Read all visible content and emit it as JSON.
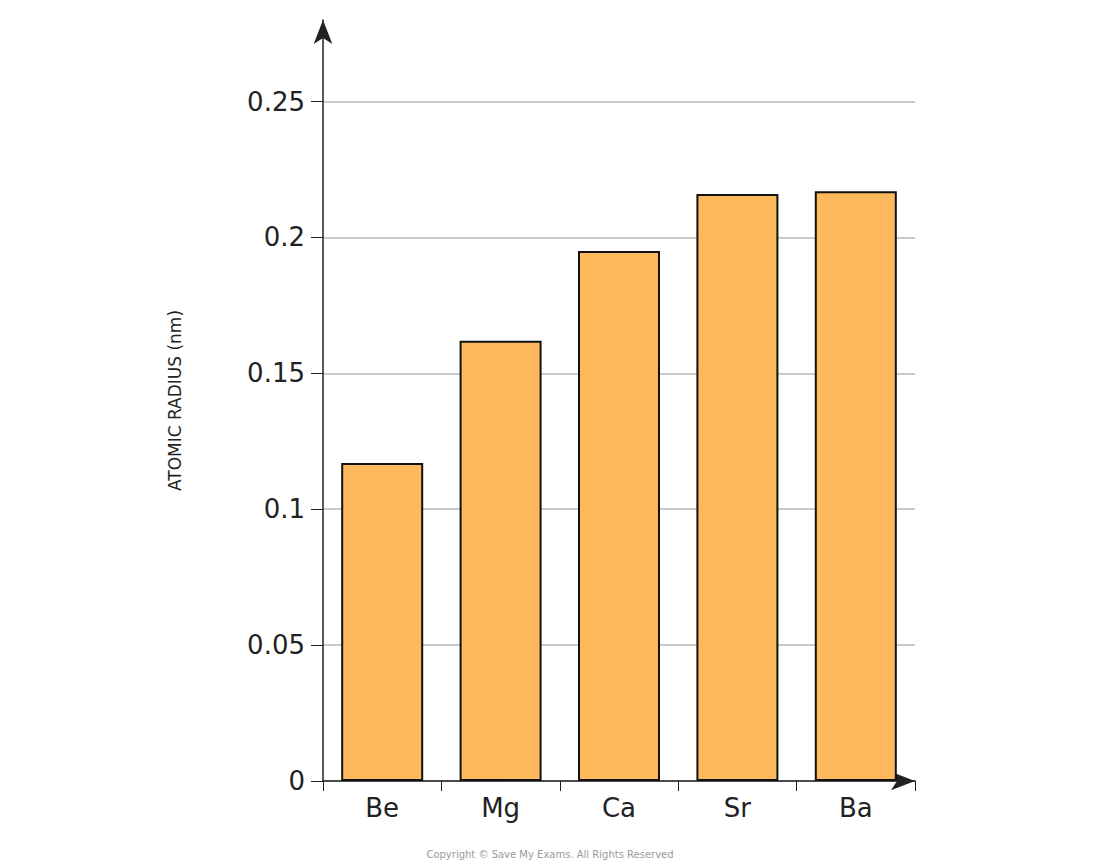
{
  "chart_data": {
    "type": "bar",
    "categories": [
      "Be",
      "Mg",
      "Ca",
      "Sr",
      "Ba"
    ],
    "values": [
      0.117,
      0.162,
      0.195,
      0.216,
      0.217
    ],
    "color": "#fdb95c",
    "y_label": "ATOMIC RADIUS (nm)",
    "ylim": [
      0,
      0.28
    ],
    "yticks": [
      0,
      0.05,
      0.1,
      0.15,
      0.2,
      0.25
    ],
    "grid": true,
    "annotations": [
      "Copyright © Save My Exams. All Rights Reserved"
    ]
  }
}
